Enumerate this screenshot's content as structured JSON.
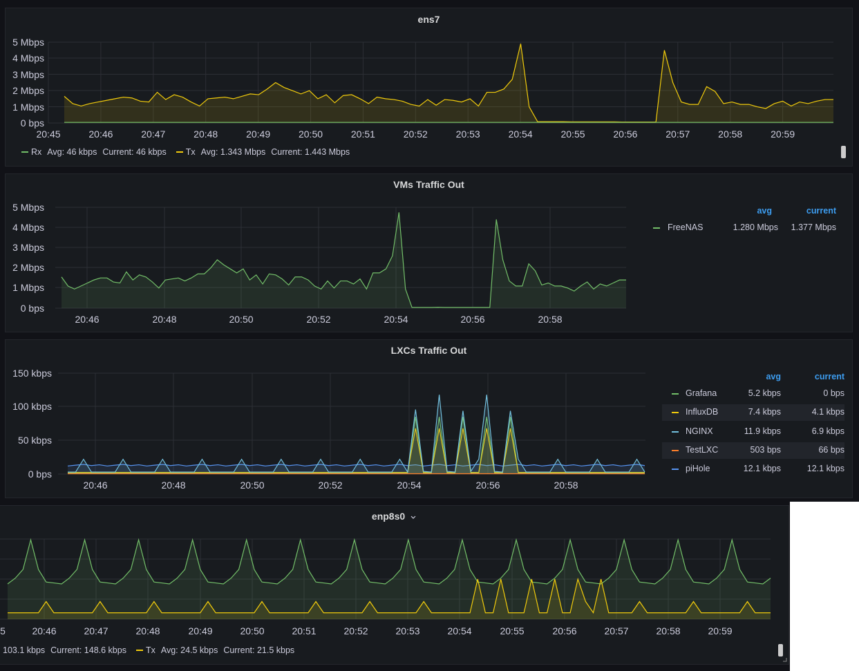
{
  "colors": {
    "rx": "#73bf69",
    "tx": "#f2cc0c",
    "nginx": "#8ab8ff",
    "testlxc": "#ff7f2a",
    "pihole": "#5794f2",
    "nginx_line": "#73c0de",
    "accent": "#3d9df0"
  },
  "panel_ens7": {
    "title": "ens7",
    "yticks": [
      "5 Mbps",
      "4 Mbps",
      "3 Mbps",
      "2 Mbps",
      "1 Mbps",
      "0 bps"
    ],
    "xticks": [
      "20:45",
      "20:46",
      "20:47",
      "20:48",
      "20:49",
      "20:50",
      "20:51",
      "20:52",
      "20:53",
      "20:54",
      "20:55",
      "20:56",
      "20:57",
      "20:58",
      "20:59"
    ],
    "legend": {
      "rx_name": "Rx",
      "rx_avg": "Avg: 46 kbps",
      "rx_current": "Current: 46 kbps",
      "tx_name": "Tx",
      "tx_avg": "Avg: 1.343 Mbps",
      "tx_current": "Current: 1.443 Mbps"
    }
  },
  "panel_vms": {
    "title": "VMs Traffic Out",
    "yticks": [
      "5 Mbps",
      "4 Mbps",
      "3 Mbps",
      "2 Mbps",
      "1 Mbps",
      "0 bps"
    ],
    "xticks": [
      "20:46",
      "20:48",
      "20:50",
      "20:52",
      "20:54",
      "20:56",
      "20:58"
    ],
    "legend_headers": {
      "avg": "avg",
      "current": "current"
    },
    "legend": [
      {
        "name": "FreeNAS",
        "avg": "1.280 Mbps",
        "current": "1.377 Mbps"
      }
    ]
  },
  "panel_lxcs": {
    "title": "LXCs Traffic Out",
    "yticks": [
      "150 kbps",
      "100 kbps",
      "50 kbps",
      "0 bps"
    ],
    "xticks": [
      "20:46",
      "20:48",
      "20:50",
      "20:52",
      "20:54",
      "20:56",
      "20:58"
    ],
    "legend_headers": {
      "avg": "avg",
      "current": "current"
    },
    "legend": [
      {
        "name": "Grafana",
        "avg": "5.2 kbps",
        "current": "0 bps"
      },
      {
        "name": "InfluxDB",
        "avg": "7.4 kbps",
        "current": "4.1 kbps"
      },
      {
        "name": "NGINX",
        "avg": "11.9 kbps",
        "current": "6.9 kbps"
      },
      {
        "name": "TestLXC",
        "avg": "503 bps",
        "current": "66 bps"
      },
      {
        "name": "piHole",
        "avg": "12.1 kbps",
        "current": "12.1 kbps"
      }
    ]
  },
  "panel_enp8s0": {
    "title": "enp8s0",
    "title_icon": "chevron-down-icon",
    "xticks": [
      "5",
      "20:46",
      "20:47",
      "20:48",
      "20:49",
      "20:50",
      "20:51",
      "20:52",
      "20:53",
      "20:54",
      "20:55",
      "20:56",
      "20:57",
      "20:58",
      "20:59"
    ],
    "legend": {
      "rx_partial": "103.1 kbps",
      "rx_current": "Current: 148.6 kbps",
      "tx_name": "Tx",
      "tx_avg": "Avg: 24.5 kbps",
      "tx_current": "Current: 21.5 kbps"
    }
  }
}
